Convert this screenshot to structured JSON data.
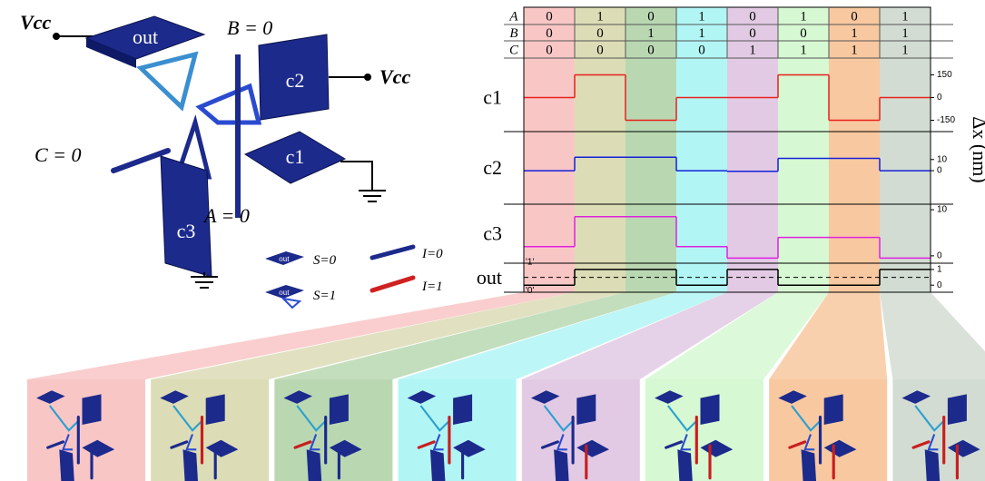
{
  "device": {
    "vcc_left": "Vcc",
    "vcc_right": "Vcc",
    "out": "out",
    "c1": "c1",
    "c2": "c2",
    "c3": "c3",
    "b_label": "B = 0",
    "c_label": "C = 0",
    "a_label": "A = 0"
  },
  "legend": {
    "switch_icon": "out",
    "s0": "S=0",
    "s1": "S=1",
    "i0": "I=0",
    "i1": "I=1"
  },
  "truth_table": {
    "rows": [
      {
        "name": "A",
        "values": [
          0,
          1,
          0,
          1,
          0,
          1,
          0,
          1
        ]
      },
      {
        "name": "B",
        "values": [
          0,
          0,
          1,
          1,
          0,
          0,
          1,
          1
        ]
      },
      {
        "name": "C",
        "values": [
          0,
          0,
          0,
          0,
          1,
          1,
          1,
          1
        ]
      }
    ]
  },
  "column_colors": [
    "#f9c6c6",
    "#dcdcb6",
    "#b9d8b2",
    "#b2f5f5",
    "#e2cae4",
    "#d6f8d2",
    "#f8c8a0",
    "#d2dcd2"
  ],
  "waveforms": [
    {
      "name": "c1",
      "color": "#e8211d",
      "values": [
        0,
        150,
        -150,
        0,
        0,
        150,
        -150,
        0
      ],
      "ylim": [
        -225,
        225
      ],
      "yticks": [
        150,
        0,
        -150
      ]
    },
    {
      "name": "c2",
      "color": "#1420d8",
      "values": [
        0,
        12,
        12,
        0,
        -0.5,
        11,
        11,
        0
      ],
      "ylim": [
        -30,
        35
      ],
      "yticks": [
        10,
        0
      ]
    },
    {
      "name": "c3",
      "color": "#e020e0",
      "values": [
        2,
        8.5,
        8.5,
        2,
        -0.5,
        4,
        4,
        -0.5
      ],
      "ylim": [
        -1.6,
        11.2
      ],
      "yticks": [
        10,
        0
      ]
    },
    {
      "name": "out",
      "color": "#000000",
      "values": [
        0,
        1,
        1,
        0,
        1,
        0,
        0,
        1
      ],
      "ylim": [
        -0.45,
        1.4
      ],
      "yticks": [
        1,
        0
      ],
      "level_labels": [
        "'1'",
        "'0'"
      ]
    }
  ],
  "axis_title": "Δx (nm)"
}
